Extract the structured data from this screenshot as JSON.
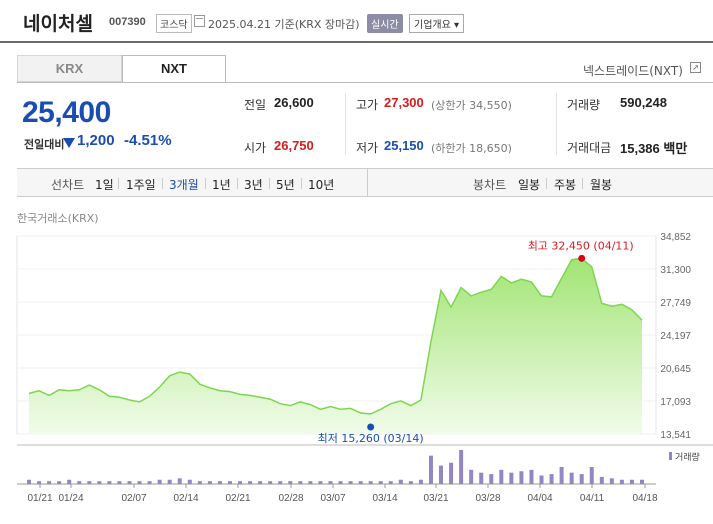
{
  "header": {
    "name": "네이처셀",
    "code": "007390",
    "market": "코스닥",
    "date_text": "2025.04.21 기준(KRX 장마감)",
    "realtime_label": "실시간",
    "overview_label": "기업개요 ▾"
  },
  "tabs": {
    "krx": "KRX",
    "nxt": "NXT"
  },
  "nxt_link": "넥스트레이드(NXT)",
  "price": {
    "current": "25,400",
    "change_label": "전일대비",
    "change": "1,200",
    "change_pct": "-4.51%"
  },
  "stats": {
    "prev_close_label": "전일",
    "prev_close": "26,600",
    "open_label": "시가",
    "open": "26,750",
    "high_label": "고가",
    "high": "27,300",
    "upper_limit": "(상한가 34,550)",
    "low_label": "저가",
    "low": "25,150",
    "lower_limit": "(하한가 18,650)",
    "volume_label": "거래량",
    "volume": "590,248",
    "amount_label": "거래대금",
    "amount": "15,386 백만"
  },
  "toolbar": {
    "line_label": "선차트",
    "periods": [
      "1일",
      "1주일",
      "3개월",
      "1년",
      "3년",
      "5년",
      "10년"
    ],
    "active_period": "3개월",
    "candle_label": "봉차트",
    "candles": [
      "일봉",
      "주봉",
      "월봉"
    ]
  },
  "source_label": "한국거래소(KRX)",
  "colors": {
    "down": "#1a4db3",
    "up": "#d91c1c",
    "line": "#7dd64f",
    "volume": "#9386c4"
  },
  "chart_data": {
    "type": "area",
    "y_ticks": [
      "34,852",
      "31,300",
      "27,749",
      "24,197",
      "20,645",
      "17,093",
      "13,541"
    ],
    "ylim": [
      13541,
      34852
    ],
    "x_ticks": [
      "01/21",
      "01/24",
      "02/07",
      "02/14",
      "02/21",
      "02/28",
      "03/07",
      "03/14",
      "03/21",
      "03/28",
      "04/04",
      "04/11",
      "04/18"
    ],
    "max_label": "최고 32,450 (04/11)",
    "max_value": 32450,
    "min_label": "최저 15,260 (03/14)",
    "min_value": 15260,
    "volume_legend": "거래량",
    "series": [
      {
        "values": [
          17900,
          18200,
          17700,
          18300,
          18200,
          18300,
          18800,
          18300,
          17600,
          17500,
          17200,
          17000,
          17600,
          18600,
          19800,
          20200,
          20000,
          18900,
          18500,
          18200,
          18100,
          17800,
          17700,
          17500,
          17300,
          16800,
          16600,
          17000,
          16700,
          16200,
          16500,
          16200,
          16300,
          15800,
          15700,
          16200,
          16800,
          17100,
          16600,
          17200,
          23500,
          29000,
          27200,
          29300,
          28400,
          28800,
          29100,
          30500,
          29800,
          30200,
          29900,
          28400,
          28300,
          30300,
          32300,
          32450,
          31500,
          27600,
          27300,
          27500,
          26900,
          25800
        ]
      },
      {
        "name": "거래량",
        "values": [
          3,
          2,
          2,
          2,
          3,
          2,
          2,
          2,
          2,
          2,
          2,
          2,
          2,
          3,
          3,
          4,
          3,
          2,
          2,
          2,
          2,
          2,
          2,
          2,
          2,
          2,
          2,
          2,
          2,
          2,
          2,
          2,
          2,
          2,
          2,
          2,
          2,
          3,
          2,
          3,
          20,
          13,
          15,
          24,
          10,
          8,
          7,
          10,
          8,
          9,
          10,
          6,
          7,
          12,
          8,
          7,
          12,
          5,
          4,
          3,
          3,
          3
        ]
      }
    ]
  }
}
